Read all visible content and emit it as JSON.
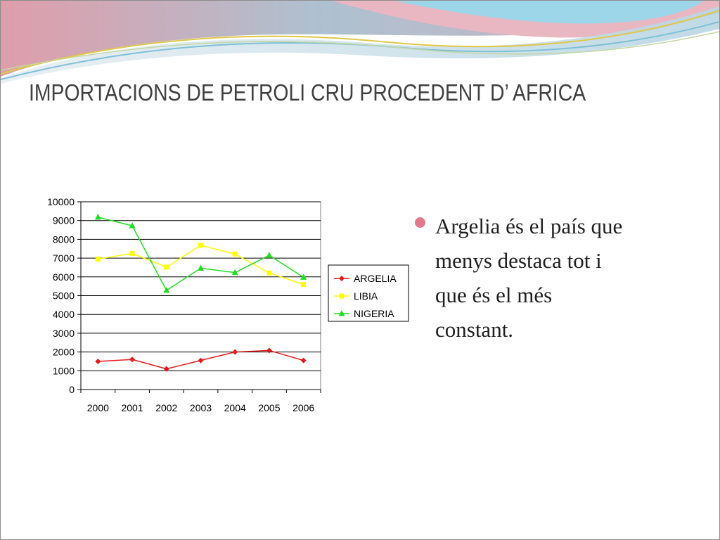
{
  "slide": {
    "title": "IMPORTACIONS DE PETROLI CRU PROCEDENT D’ AFRICA",
    "bullet_lines": [
      "Argelia és el país que",
      "menys destaca tot i",
      "que és el més",
      "constant."
    ],
    "bullet_color": "#e07a8c"
  },
  "chart_data": {
    "type": "line",
    "categories": [
      "2000",
      "2001",
      "2002",
      "2003",
      "2004",
      "2005",
      "2006"
    ],
    "series": [
      {
        "name": "ARGELIA",
        "color": "#e31a1c",
        "marker": "diamond",
        "values": [
          1500,
          1600,
          1100,
          1550,
          2000,
          2080,
          1550
        ]
      },
      {
        "name": "LIBIA",
        "color": "#ffff00",
        "marker": "square",
        "values": [
          6950,
          7250,
          6520,
          7680,
          7220,
          6210,
          5600
        ]
      },
      {
        "name": "NIGERIA",
        "color": "#22dd22",
        "marker": "triangle",
        "values": [
          9180,
          8720,
          5280,
          6460,
          6230,
          7150,
          5980
        ]
      }
    ],
    "y_ticks": [
      "0",
      "1000",
      "2000",
      "3000",
      "4000",
      "5000",
      "6000",
      "7000",
      "8000",
      "9000",
      "10000"
    ],
    "ylim": [
      0,
      10000
    ],
    "grid": true,
    "legend_position": "right"
  }
}
